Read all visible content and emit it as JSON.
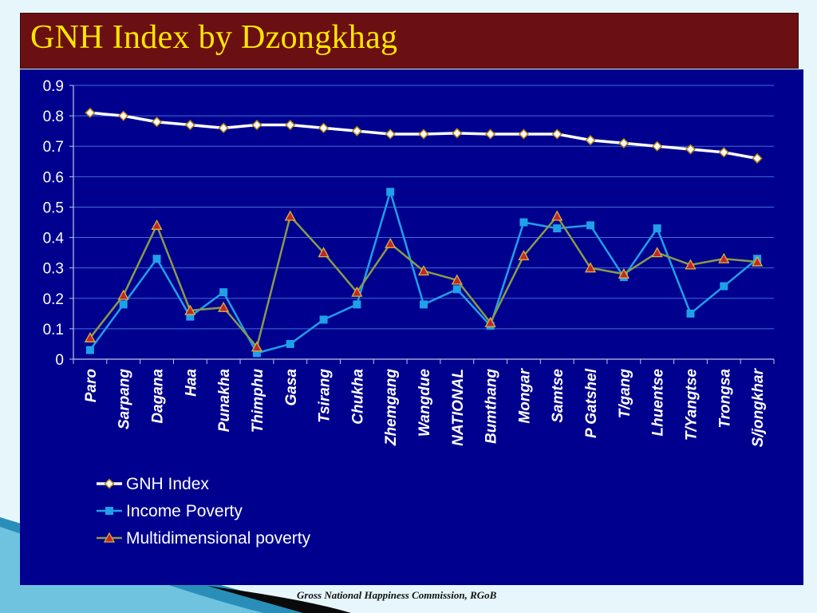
{
  "slide": {
    "title": "GNH Index by Dzongkhag",
    "footer": "Gross National Happiness Commission, RGoB"
  },
  "colors": {
    "title_bg": "#6b1012",
    "title_text": "#ffe600",
    "plot_bg": "#00008f",
    "gnh": "#ffffff",
    "income": "#1fa0e8",
    "multi": "#8b9a48",
    "multi_marker": "#c0282c"
  },
  "chart_data": {
    "type": "line",
    "title": "",
    "xlabel": "",
    "ylabel": "",
    "ylim": [
      0,
      0.9
    ],
    "yticks": [
      "0",
      "0.1",
      "0.2",
      "0.3",
      "0.4",
      "0.5",
      "0.6",
      "0.7",
      "0.8",
      "0.9"
    ],
    "grid": true,
    "legend_position": "bottom-left",
    "categories": [
      "Paro",
      "Sarpang",
      "Dagana",
      "Haa",
      "Punakha",
      "Thimphu",
      "Gasa",
      "Tsirang",
      "Chukha",
      "Zhemgang",
      "Wangdue",
      "NATIONAL",
      "Bumthang",
      "Mongar",
      "Samtse",
      "P Gatshel",
      "T/gang",
      "Lhuentse",
      "T/Yangtse",
      "Trongsa",
      "S/jongkhar"
    ],
    "series": [
      {
        "name": "GNH Index",
        "marker": "diamond",
        "values": [
          0.81,
          0.8,
          0.78,
          0.77,
          0.76,
          0.77,
          0.77,
          0.76,
          0.75,
          0.74,
          0.74,
          0.743,
          0.74,
          0.74,
          0.74,
          0.72,
          0.71,
          0.7,
          0.69,
          0.68,
          0.66
        ]
      },
      {
        "name": "Income Poverty",
        "marker": "square",
        "values": [
          0.03,
          0.18,
          0.33,
          0.14,
          0.22,
          0.02,
          0.05,
          0.13,
          0.18,
          0.55,
          0.18,
          0.23,
          0.11,
          0.45,
          0.43,
          0.44,
          0.27,
          0.43,
          0.15,
          0.24,
          0.33
        ]
      },
      {
        "name": "Multidimensional poverty",
        "marker": "triangle",
        "values": [
          0.07,
          0.21,
          0.44,
          0.16,
          0.17,
          0.04,
          0.47,
          0.35,
          0.22,
          0.38,
          0.29,
          0.26,
          0.12,
          0.34,
          0.47,
          0.3,
          0.28,
          0.35,
          0.31,
          0.33,
          0.32
        ]
      }
    ]
  }
}
